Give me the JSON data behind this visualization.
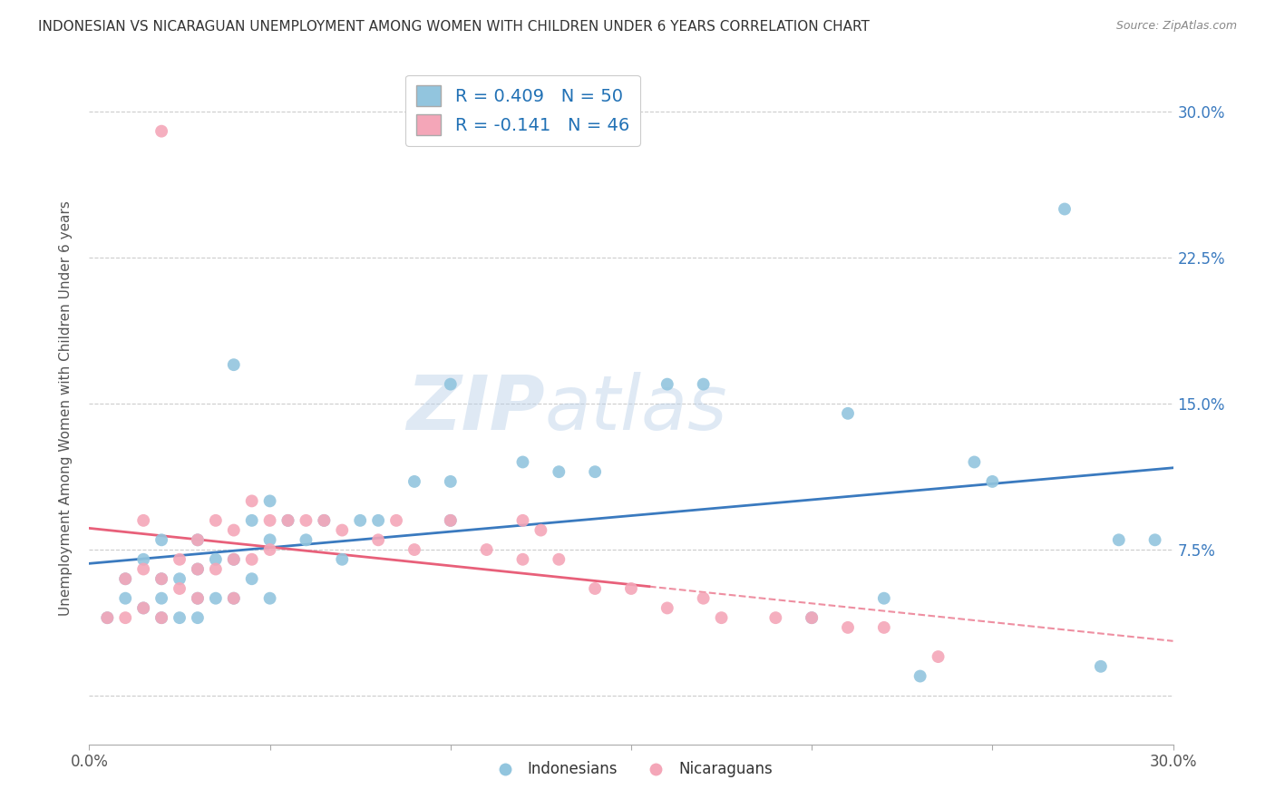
{
  "title": "INDONESIAN VS NICARAGUAN UNEMPLOYMENT AMONG WOMEN WITH CHILDREN UNDER 6 YEARS CORRELATION CHART",
  "source": "Source: ZipAtlas.com",
  "ylabel": "Unemployment Among Women with Children Under 6 years",
  "xlim": [
    0.0,
    0.3
  ],
  "ylim": [
    -0.02,
    0.32
  ],
  "plot_ylim": [
    0.0,
    0.3
  ],
  "xticks": [
    0.0,
    0.05,
    0.1,
    0.15,
    0.2,
    0.25,
    0.3
  ],
  "xticklabels": [
    "0.0%",
    "",
    "",
    "",
    "",
    "",
    "30.0%"
  ],
  "yticks": [
    0.0,
    0.075,
    0.15,
    0.225,
    0.3
  ],
  "right_yticklabels": [
    "7.5%",
    "15.0%",
    "22.5%",
    "30.0%"
  ],
  "indonesian_R": 0.409,
  "indonesian_N": 50,
  "nicaraguan_R": -0.141,
  "nicaraguan_N": 46,
  "blue_color": "#92c5de",
  "pink_color": "#f4a6b8",
  "blue_line_color": "#3a7abf",
  "pink_line_color": "#e8607a",
  "indonesian_x": [
    0.005,
    0.01,
    0.01,
    0.015,
    0.015,
    0.02,
    0.02,
    0.02,
    0.02,
    0.025,
    0.025,
    0.03,
    0.03,
    0.03,
    0.03,
    0.035,
    0.035,
    0.04,
    0.04,
    0.04,
    0.045,
    0.045,
    0.05,
    0.05,
    0.05,
    0.055,
    0.06,
    0.065,
    0.07,
    0.075,
    0.08,
    0.09,
    0.1,
    0.1,
    0.12,
    0.13,
    0.14,
    0.16,
    0.17,
    0.2,
    0.21,
    0.22,
    0.23,
    0.245,
    0.25,
    0.27,
    0.28,
    0.285,
    0.295,
    0.1
  ],
  "indonesian_y": [
    0.04,
    0.05,
    0.06,
    0.045,
    0.07,
    0.04,
    0.05,
    0.06,
    0.08,
    0.04,
    0.06,
    0.04,
    0.05,
    0.065,
    0.08,
    0.05,
    0.07,
    0.05,
    0.07,
    0.17,
    0.06,
    0.09,
    0.05,
    0.08,
    0.1,
    0.09,
    0.08,
    0.09,
    0.07,
    0.09,
    0.09,
    0.11,
    0.11,
    0.09,
    0.12,
    0.115,
    0.115,
    0.16,
    0.16,
    0.04,
    0.145,
    0.05,
    0.01,
    0.12,
    0.11,
    0.25,
    0.015,
    0.08,
    0.08,
    0.16
  ],
  "nicaraguan_x": [
    0.005,
    0.01,
    0.01,
    0.015,
    0.015,
    0.015,
    0.02,
    0.02,
    0.025,
    0.025,
    0.03,
    0.03,
    0.03,
    0.035,
    0.035,
    0.04,
    0.04,
    0.04,
    0.045,
    0.045,
    0.05,
    0.05,
    0.055,
    0.06,
    0.065,
    0.07,
    0.08,
    0.085,
    0.09,
    0.1,
    0.11,
    0.12,
    0.12,
    0.125,
    0.13,
    0.14,
    0.15,
    0.16,
    0.17,
    0.175,
    0.19,
    0.2,
    0.21,
    0.22,
    0.235,
    0.02
  ],
  "nicaraguan_y": [
    0.04,
    0.04,
    0.06,
    0.045,
    0.065,
    0.09,
    0.04,
    0.06,
    0.055,
    0.07,
    0.05,
    0.065,
    0.08,
    0.065,
    0.09,
    0.05,
    0.07,
    0.085,
    0.07,
    0.1,
    0.075,
    0.09,
    0.09,
    0.09,
    0.09,
    0.085,
    0.08,
    0.09,
    0.075,
    0.09,
    0.075,
    0.07,
    0.09,
    0.085,
    0.07,
    0.055,
    0.055,
    0.045,
    0.05,
    0.04,
    0.04,
    0.04,
    0.035,
    0.035,
    0.02,
    0.29
  ]
}
